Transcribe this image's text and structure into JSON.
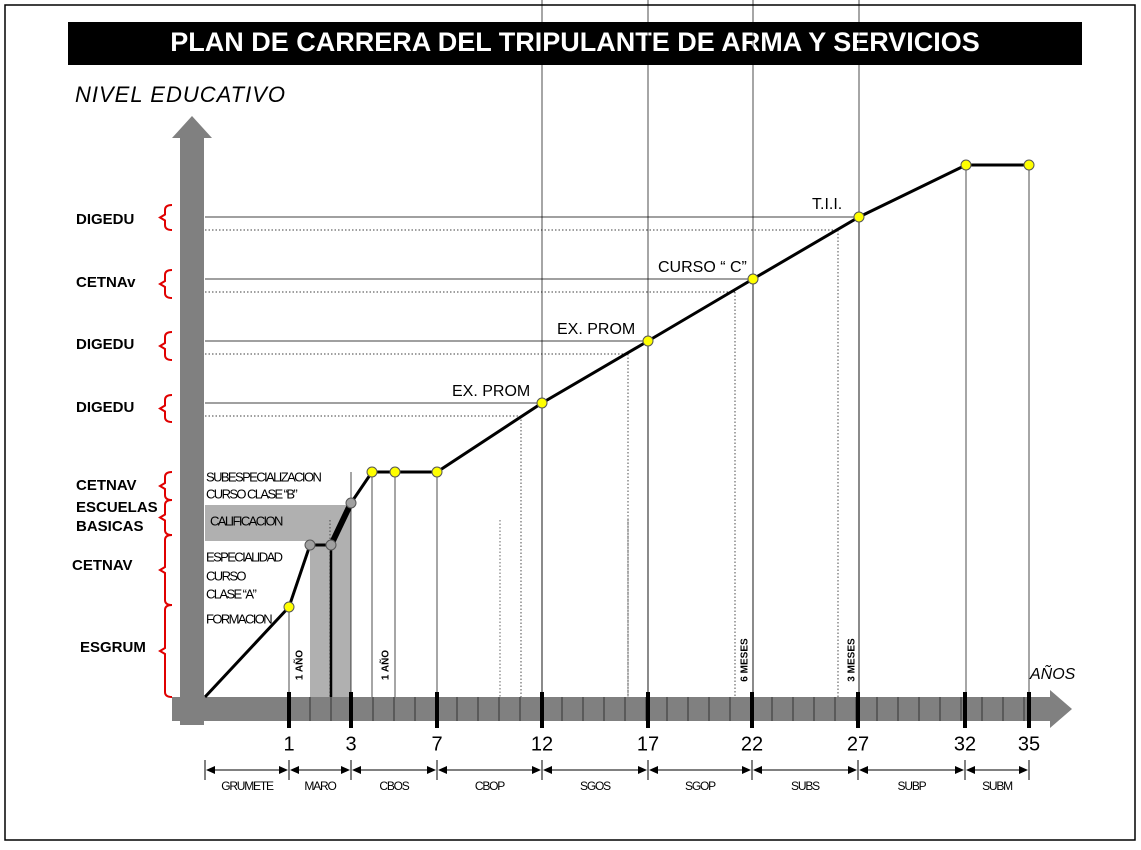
{
  "title": "PLAN DE CARRERA DEL TRIPULANTE DE ARMA Y SERVICIOS",
  "y_axis_label": "NIVEL EDUCATIVO",
  "x_axis_label": "AÑOS",
  "levels": [
    "DIGEDU",
    "CETNAv",
    "DIGEDU",
    "DIGEDU",
    "CETNAV",
    "ESCUELAS",
    "BASICAS",
    "CETNAV",
    "ESGRUM"
  ],
  "annotations": [
    "T.I.I.",
    "CURSO “ C”",
    "EX. PROM",
    "EX. PROM"
  ],
  "durations": [
    "1 AÑO",
    "1 AÑO",
    "6 MESES",
    "3 MESES"
  ],
  "courses": [
    "SUBESPECIALIZACION",
    "CURSO CLASE “B”",
    "CALIFICACION",
    "ESPECIALIDAD",
    "CURSO",
    "CLASE “A”",
    "FORMACION"
  ],
  "years": [
    "1",
    "3",
    "7",
    "12",
    "17",
    "22",
    "27",
    "32",
    "35"
  ],
  "ranks": [
    "GRUMETE",
    "MARO",
    "CBOS",
    "CBOP",
    "SGOS",
    "SGOP",
    "SUBS",
    "SUBP",
    "SUBM"
  ]
}
